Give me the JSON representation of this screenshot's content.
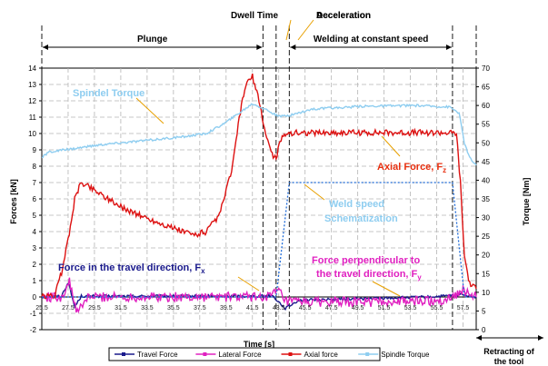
{
  "chart_data": {
    "type": "line",
    "xlabel": "Time [s]",
    "ylabel_left": "Forces [kN]",
    "ylabel_right": "Torque [Nm]",
    "ylim_left": [
      -2,
      14
    ],
    "ylim_right": [
      0,
      70
    ],
    "xlim": [
      25.5,
      58.5
    ],
    "grid": true,
    "legend_position": "bottom",
    "x_tick_labels": [
      "25.5",
      "27.5",
      "29.5",
      "31.5",
      "33.5",
      "35.5",
      "37.5",
      "39.5",
      "41.5",
      "43.5",
      "45.5",
      "47.5",
      "49.5",
      "51.5",
      "53.5",
      "55.5",
      "57.5"
    ],
    "y_left_ticks": [
      -2,
      -1,
      0,
      1,
      2,
      3,
      4,
      5,
      6,
      7,
      8,
      9,
      10,
      11,
      12,
      13,
      14
    ],
    "y_right_ticks": [
      0,
      5,
      10,
      15,
      20,
      25,
      30,
      35,
      40,
      45,
      50,
      55,
      60,
      65,
      70
    ],
    "phases": [
      {
        "label": "Plunge",
        "x_start": 25.5,
        "x_end": 42.3
      },
      {
        "label": "Dwell Time",
        "x_start": 42.3,
        "x_end": 43.3
      },
      {
        "label": "Acceleration",
        "x_start": 43.3,
        "x_end": 44.3
      },
      {
        "label": "Welding at constant speed",
        "x_start": 44.3,
        "x_end": 56.7
      },
      {
        "label": "Deceleration",
        "x_start": 56.7,
        "x_end": 58.5
      }
    ],
    "annotations": {
      "spindle_torque": "Spindel Torque",
      "axial_force": "Axial Force, F",
      "axial_force_sub": "z",
      "weld_speed_1": "Weld speed",
      "weld_speed_2": "Schematization",
      "travel_force": "Force in the travel direction, F",
      "travel_force_sub": "x",
      "lateral_force_1": "Force perpendicular to",
      "lateral_force_2": "the travel direction, F",
      "lateral_force_sub": "y",
      "retracting_1": "Retracting of",
      "retracting_2": "the tool"
    },
    "series": [
      {
        "name": "Travel Force",
        "color": "#1a1a8c",
        "axis": "left",
        "x": [
          25.5,
          27.0,
          27.5,
          28.0,
          28.5,
          29.5,
          32.0,
          36.0,
          40.0,
          42.0,
          43.0,
          44.0,
          45.0,
          50.0,
          55.0,
          57.0,
          57.5,
          58.0,
          58.5
        ],
        "y": [
          0.0,
          0.05,
          0.9,
          -0.6,
          0.05,
          0.05,
          0.05,
          0.05,
          0.05,
          0.05,
          0.1,
          -0.7,
          -0.2,
          -0.1,
          0.0,
          0.1,
          0.2,
          0.05,
          0.0
        ],
        "noise": 0.08
      },
      {
        "name": "Lateral Force",
        "color": "#e020c0",
        "axis": "left",
        "x": [
          25.5,
          27.0,
          27.6,
          28.2,
          29.0,
          32.0,
          36.0,
          40.0,
          42.0,
          43.0,
          43.5,
          44.0,
          48.0,
          52.0,
          56.0,
          57.5,
          58.5
        ],
        "y": [
          0.0,
          0.0,
          0.9,
          -1.0,
          0.0,
          0.0,
          0.0,
          0.0,
          0.0,
          0.1,
          0.4,
          -0.3,
          -0.3,
          -0.3,
          -0.2,
          0.4,
          0.0
        ],
        "noise": 0.3
      },
      {
        "name": "Axial force",
        "color": "#dd1111",
        "axis": "left",
        "x": [
          25.5,
          26.5,
          27.0,
          27.5,
          28.0,
          28.5,
          29.0,
          30.0,
          31.5,
          33.5,
          35.5,
          37.0,
          38.0,
          39.0,
          40.0,
          40.5,
          41.0,
          41.5,
          42.0,
          42.5,
          43.0,
          43.3,
          43.6,
          44.0,
          45.0,
          48.0,
          52.0,
          56.0,
          57.0,
          57.3,
          57.6,
          58.0,
          58.5
        ],
        "y": [
          0.0,
          0.1,
          1.5,
          3.5,
          6.0,
          7.0,
          6.8,
          6.3,
          5.5,
          4.8,
          4.2,
          3.8,
          4.0,
          5.0,
          8.0,
          11.0,
          13.0,
          13.5,
          12.0,
          10.0,
          8.7,
          8.5,
          9.5,
          10.0,
          10.05,
          10.05,
          10.05,
          10.05,
          10.0,
          7.0,
          2.5,
          0.8,
          0.5
        ],
        "noise": 0.18
      },
      {
        "name": "Spindle Torque",
        "color": "#8ecdf0",
        "axis": "right",
        "x": [
          25.5,
          26.0,
          28.0,
          30.0,
          33.0,
          36.0,
          38.0,
          39.5,
          40.5,
          41.5,
          42.5,
          43.5,
          44.5,
          46.0,
          50.0,
          54.0,
          56.5,
          57.2,
          57.6,
          58.0,
          58.5
        ],
        "y": [
          46.0,
          47.5,
          48.5,
          49.5,
          50.5,
          51.5,
          52.5,
          55.5,
          58.0,
          60.5,
          59.0,
          57.0,
          57.5,
          59.0,
          59.8,
          60.0,
          59.6,
          58.0,
          50.0,
          46.0,
          44.0
        ],
        "noise": 0.3
      },
      {
        "name": "Weld speed schematization",
        "color": "#1e6ad8",
        "axis": "left",
        "dashed": true,
        "legend": false,
        "x": [
          25.5,
          43.3,
          44.3,
          56.7,
          57.6,
          58.5
        ],
        "y": [
          0.0,
          0.0,
          7.0,
          7.0,
          0.0,
          0.0
        ],
        "noise": 0
      }
    ]
  }
}
